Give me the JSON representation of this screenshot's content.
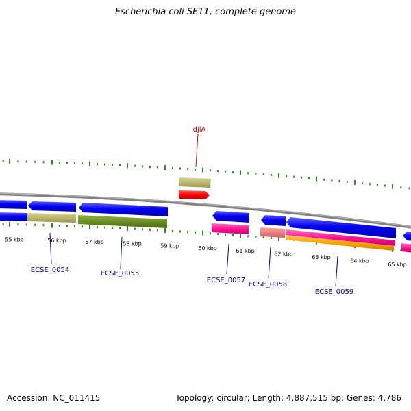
{
  "title": "Escherichia coli SE11, complete genome",
  "accession": "Accession: NC_011415",
  "topology": "Topology: circular; Length: 4,887,515 bp; Genes: 4,786",
  "tick_labels": [
    {
      "kbp": 55,
      "text": "55 kbp"
    },
    {
      "kbp": 56,
      "text": "56 kbp"
    },
    {
      "kbp": 57,
      "text": "57 kbp"
    },
    {
      "kbp": 58,
      "text": "58 kbp"
    },
    {
      "kbp": 59,
      "text": "59 kbp"
    },
    {
      "kbp": 60,
      "text": "60 kbp"
    },
    {
      "kbp": 61,
      "text": "61 kbp"
    },
    {
      "kbp": 62,
      "text": "62 kbp"
    },
    {
      "kbp": 63,
      "text": "63 kbp"
    },
    {
      "kbp": 64,
      "text": "64 kbp"
    },
    {
      "kbp": 65,
      "text": "65 kbp"
    }
  ],
  "gene_labels": [
    {
      "text": "djlA",
      "color": "#cc0000"
    },
    {
      "text": "ECSE_0054",
      "color": "#00008b"
    },
    {
      "text": "ECSE_0055",
      "color": "#00008b"
    },
    {
      "text": "ECSE_0057",
      "color": "#00008b"
    },
    {
      "text": "ECSE_0058",
      "color": "#00008b"
    },
    {
      "text": "ECSE_0059",
      "color": "#00008b"
    }
  ],
  "colors": {
    "backbone": "#888888",
    "tick": "#2e8b22",
    "cds": "#0000ee",
    "gene_khaki": "#bdb76b",
    "gene_olive": "#6b8e23",
    "gene_pink": "#ff1493",
    "gene_salmon": "#f08080",
    "gene_orange": "#ffa500",
    "gene_red": "#ff0000"
  }
}
